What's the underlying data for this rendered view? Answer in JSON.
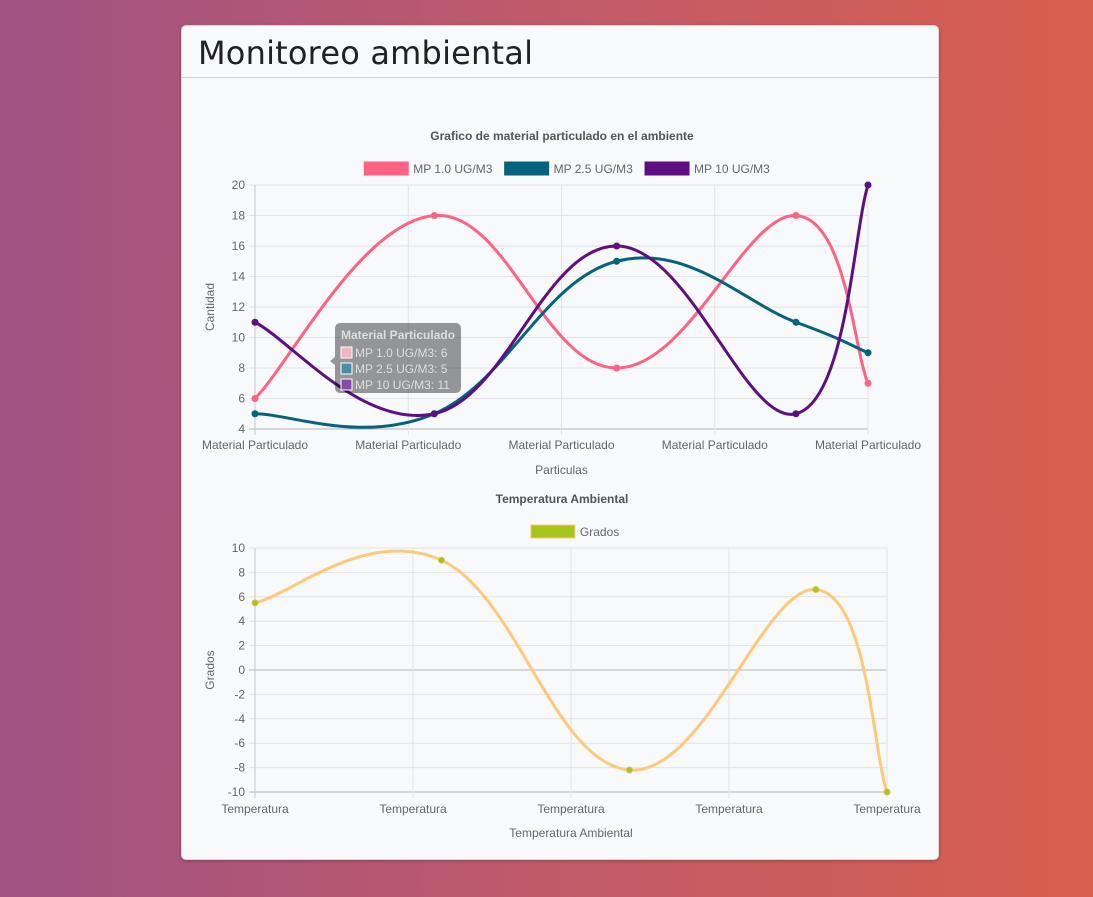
{
  "page": {
    "title": "Monitoreo ambiental"
  },
  "chart_data": [
    {
      "type": "line",
      "title": "Grafico de material particulado en el ambiente",
      "xlabel": "Particulas",
      "ylabel": "Cantidad",
      "ylim": [
        4,
        20
      ],
      "yticks": [
        4,
        6,
        8,
        10,
        12,
        14,
        16,
        18,
        20
      ],
      "categories": [
        "Material Particulado",
        "Material Particulado",
        "Material Particulado",
        "Material Particulado",
        "Material Particulado"
      ],
      "point_positions": [
        0,
        1.17,
        2.36,
        3.53,
        4
      ],
      "legend_position": "top",
      "grid": true,
      "series": [
        {
          "name": "MP 1.0 UG/M3",
          "color": "#ff6384",
          "values": [
            6,
            18,
            8,
            18,
            7
          ]
        },
        {
          "name": "MP 2.5 UG/M3",
          "color": "#05637d",
          "values": [
            5,
            5,
            15,
            11,
            9
          ]
        },
        {
          "name": "MP 10 UG/M3",
          "color": "#5e0f82",
          "values": [
            11,
            5,
            16,
            5,
            20
          ]
        }
      ],
      "tooltip": {
        "title": "Material Particulado",
        "lines": [
          "MP 1.0 UG/M3: 6",
          "MP 2.5 UG/M3: 5",
          "MP 10 UG/M3: 11"
        ]
      }
    },
    {
      "type": "line",
      "title": "Temperatura Ambiental",
      "xlabel": "Temperatura Ambiental",
      "ylabel": "Grados",
      "ylim": [
        -10,
        10
      ],
      "yticks": [
        -10,
        -8,
        -6,
        -4,
        -2,
        0,
        2,
        4,
        6,
        8,
        10
      ],
      "categories": [
        "Temperatura",
        "Temperatura",
        "Temperatura",
        "Temperatura",
        "Temperatura"
      ],
      "point_positions": [
        0,
        1.18,
        2.37,
        3.55,
        4
      ],
      "legend_position": "top",
      "grid": true,
      "series": [
        {
          "name": "Grados",
          "color": "#ffc97a",
          "point_color": "#a6c41c",
          "values": [
            5.5,
            9,
            -8.2,
            6.6,
            -10
          ]
        }
      ]
    }
  ]
}
